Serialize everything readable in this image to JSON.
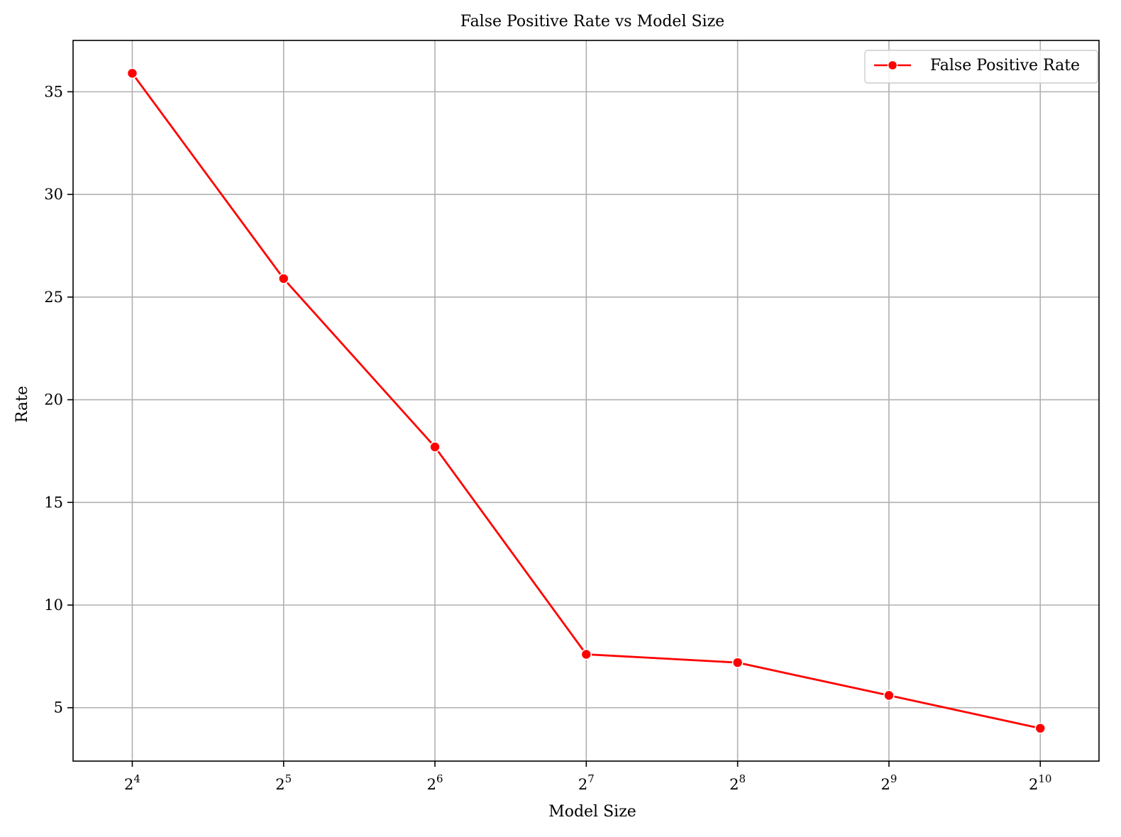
{
  "chart_data": {
    "type": "line",
    "title": "False Positive Rate vs Model Size",
    "xlabel": "Model Size",
    "ylabel": "Rate",
    "x_scale": "log2",
    "x": [
      16,
      32,
      64,
      128,
      256,
      512,
      1024
    ],
    "xtick_labels": [
      {
        "base": "2",
        "exp": "4"
      },
      {
        "base": "2",
        "exp": "5"
      },
      {
        "base": "2",
        "exp": "6"
      },
      {
        "base": "2",
        "exp": "7"
      },
      {
        "base": "2",
        "exp": "8"
      },
      {
        "base": "2",
        "exp": "9"
      },
      {
        "base": "2",
        "exp": "10"
      }
    ],
    "yticks": [
      5,
      10,
      15,
      20,
      25,
      30,
      35
    ],
    "ylim": [
      2.4,
      37.5
    ],
    "xlim": [
      12.2,
      1340
    ],
    "grid": true,
    "legend_position": "top-right",
    "series": [
      {
        "name": "False Positive Rate",
        "color": "#ff0000",
        "marker": "circle",
        "values": [
          35.9,
          25.9,
          17.7,
          7.6,
          7.2,
          5.6,
          4.0
        ]
      }
    ]
  }
}
